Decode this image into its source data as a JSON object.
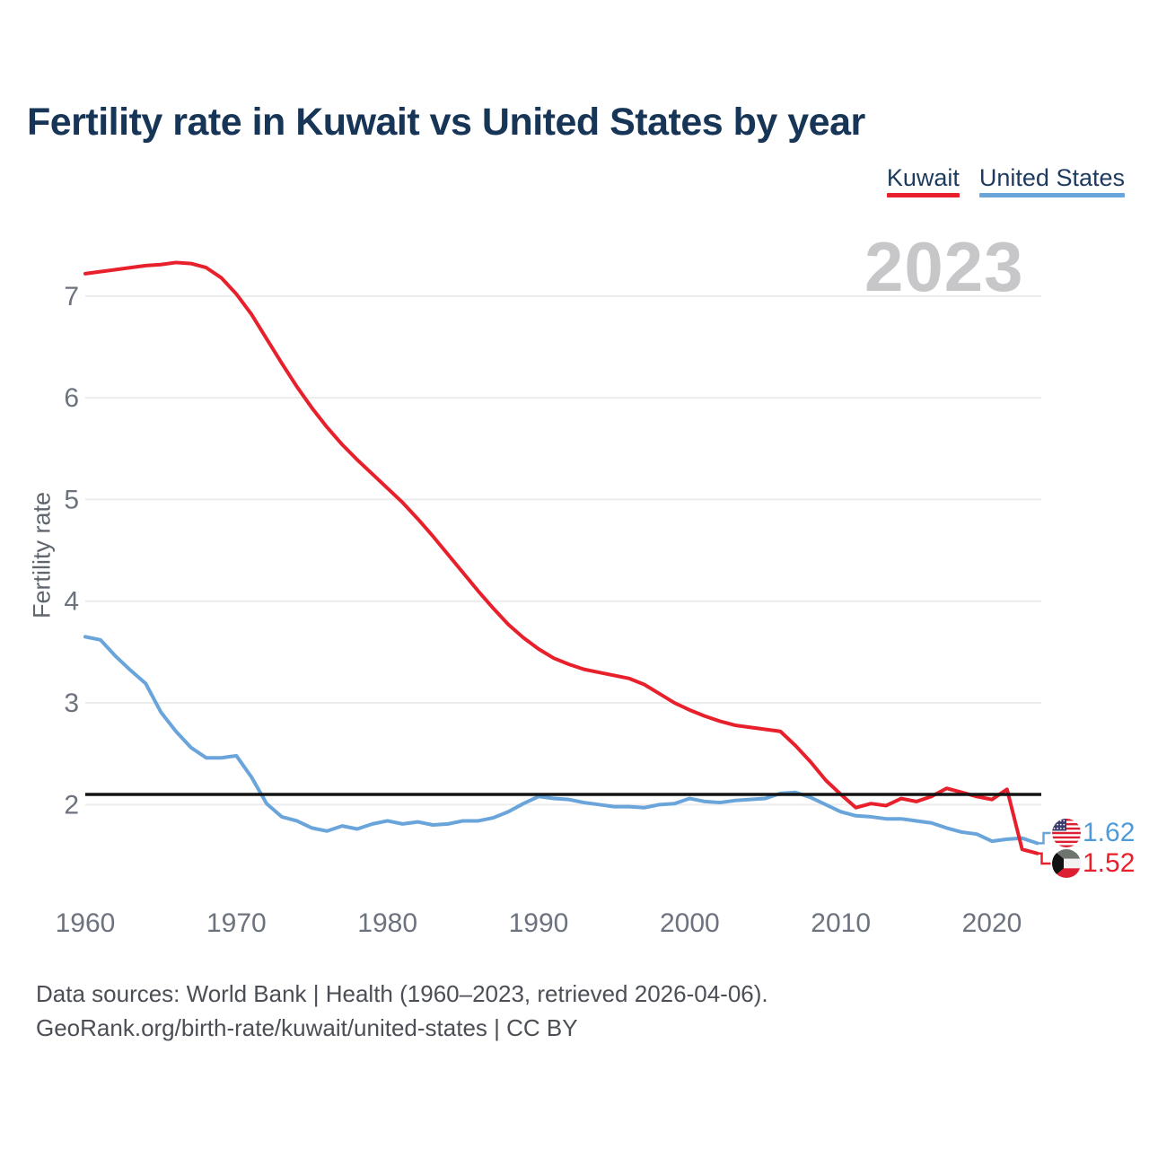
{
  "title": "Fertility rate in Kuwait vs United States by year",
  "watermark_year": "2023",
  "legend": {
    "items": [
      {
        "label": "Kuwait",
        "color": "#e8202c"
      },
      {
        "label": "United States",
        "color": "#69a5da"
      }
    ]
  },
  "y_axis": {
    "label": "Fertility rate",
    "ticks": [
      7,
      6,
      5,
      4,
      3,
      2
    ]
  },
  "x_axis": {
    "ticks": [
      1960,
      1970,
      1980,
      1990,
      2000,
      2010,
      2020
    ]
  },
  "reference_line": {
    "value": 2.1,
    "color": "#141414"
  },
  "end_labels": {
    "us": {
      "value": "1.62",
      "icon": "us-flag-icon",
      "color": "#4f9ad8"
    },
    "kuwait": {
      "value": "1.52",
      "icon": "kuwait-flag-icon",
      "color": "#e8202c"
    }
  },
  "footer": {
    "line1": "Data sources: World Bank | Health (1960–2023, retrieved 2026-04-06).",
    "line2": "GeoRank.org/birth-rate/kuwait/united-states | CC BY"
  },
  "colors": {
    "kuwait": "#e8202c",
    "us": "#69a5da",
    "grid": "#ececec",
    "reference": "#141414",
    "title": "#173557",
    "watermark": "#c7c7ca"
  },
  "chart_data": {
    "type": "line",
    "title": "Fertility rate in Kuwait vs United States by year",
    "xlabel": "",
    "ylabel": "Fertility rate",
    "xlim": [
      1960,
      2023
    ],
    "ylim": [
      1.3,
      7.6
    ],
    "grid": "horizontal",
    "gridlines": [
      2,
      3,
      4,
      5,
      6,
      7
    ],
    "reference_line": 2.1,
    "legend_position": "top-right",
    "x": [
      1960,
      1961,
      1962,
      1963,
      1964,
      1965,
      1966,
      1967,
      1968,
      1969,
      1970,
      1971,
      1972,
      1973,
      1974,
      1975,
      1976,
      1977,
      1978,
      1979,
      1980,
      1981,
      1982,
      1983,
      1984,
      1985,
      1986,
      1987,
      1988,
      1989,
      1990,
      1991,
      1992,
      1993,
      1994,
      1995,
      1996,
      1997,
      1998,
      1999,
      2000,
      2001,
      2002,
      2003,
      2004,
      2005,
      2006,
      2007,
      2008,
      2009,
      2010,
      2011,
      2012,
      2013,
      2014,
      2015,
      2016,
      2017,
      2018,
      2019,
      2020,
      2021,
      2022,
      2023
    ],
    "series": [
      {
        "name": "Kuwait",
        "color": "#e8202c",
        "values": [
          7.22,
          7.24,
          7.26,
          7.28,
          7.3,
          7.31,
          7.33,
          7.32,
          7.28,
          7.18,
          7.02,
          6.82,
          6.58,
          6.34,
          6.11,
          5.9,
          5.71,
          5.54,
          5.39,
          5.25,
          5.11,
          4.97,
          4.81,
          4.64,
          4.46,
          4.28,
          4.1,
          3.93,
          3.77,
          3.64,
          3.53,
          3.44,
          3.38,
          3.33,
          3.3,
          3.27,
          3.24,
          3.18,
          3.09,
          3.0,
          2.93,
          2.87,
          2.82,
          2.78,
          2.76,
          2.74,
          2.72,
          2.58,
          2.42,
          2.24,
          2.1,
          1.97,
          2.01,
          1.99,
          2.06,
          2.03,
          2.08,
          2.16,
          2.12,
          2.08,
          2.05,
          2.15,
          1.56,
          1.52
        ]
      },
      {
        "name": "United States",
        "color": "#69a5da",
        "values": [
          3.65,
          3.62,
          3.46,
          3.32,
          3.19,
          2.91,
          2.72,
          2.56,
          2.46,
          2.46,
          2.48,
          2.27,
          2.01,
          1.88,
          1.84,
          1.77,
          1.74,
          1.79,
          1.76,
          1.81,
          1.84,
          1.81,
          1.83,
          1.8,
          1.81,
          1.84,
          1.84,
          1.87,
          1.93,
          2.01,
          2.08,
          2.06,
          2.05,
          2.02,
          2.0,
          1.98,
          1.98,
          1.97,
          2.0,
          2.01,
          2.06,
          2.03,
          2.02,
          2.04,
          2.05,
          2.06,
          2.11,
          2.12,
          2.07,
          2.0,
          1.93,
          1.89,
          1.88,
          1.86,
          1.86,
          1.84,
          1.82,
          1.77,
          1.73,
          1.71,
          1.64,
          1.66,
          1.67,
          1.62
        ]
      }
    ]
  }
}
